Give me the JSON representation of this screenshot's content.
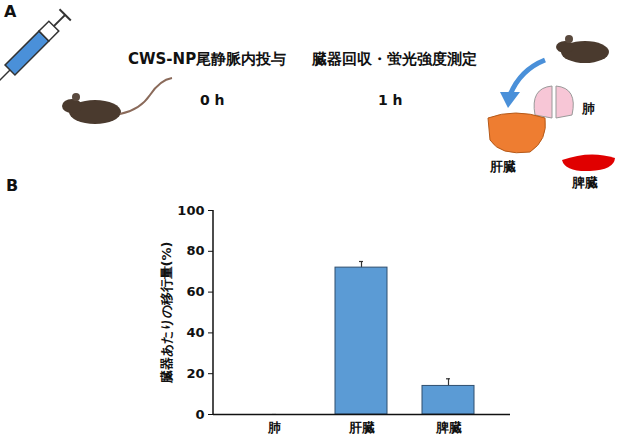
{
  "diagram": {
    "letter": "A",
    "steps": [
      {
        "label": "CWS-NP尾静脈内投与",
        "time": "0 h"
      },
      {
        "label": "臓器回収・蛍光強度測定",
        "time": "1 h"
      }
    ],
    "organs": [
      "肝臓",
      "肺",
      "脾臓"
    ]
  },
  "chart_letter": "B",
  "chart_data": {
    "type": "bar",
    "y_label": "臓器あたりの移行量(%)",
    "categories": [
      "肺",
      "肝臓",
      "脾臓"
    ],
    "values": [
      0,
      72,
      14
    ],
    "errors": [
      0,
      3,
      3.5
    ],
    "color": "#5b9bd5",
    "ylim": [
      0,
      100
    ],
    "yticks": [
      0,
      20,
      40,
      60,
      80,
      100
    ],
    "grid": false
  }
}
